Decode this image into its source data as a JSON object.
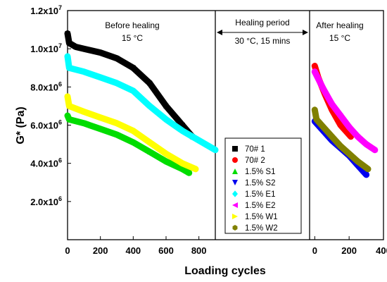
{
  "chart_data": {
    "type": "scatter",
    "xlabel": "Loading cycles",
    "ylabel": "G* (Pa)",
    "y_ticks": [
      {
        "value": 2000000,
        "mant": "2.0x10",
        "exp": "6"
      },
      {
        "value": 4000000,
        "mant": "4.0x10",
        "exp": "6"
      },
      {
        "value": 6000000,
        "mant": "6.0x10",
        "exp": "6"
      },
      {
        "value": 8000000,
        "mant": "8.0x10",
        "exp": "6"
      },
      {
        "value": 10000000,
        "mant": "1.0x10",
        "exp": "7"
      },
      {
        "value": 12000000,
        "mant": "1.2x10",
        "exp": "7"
      }
    ],
    "ylim": [
      0,
      12000000
    ],
    "grid": false,
    "legend": "center-bottom",
    "panels": [
      {
        "name": "before",
        "label_lines": [
          "Before healing",
          "15 °C"
        ],
        "xlim": [
          0,
          900
        ],
        "x_ticks": [
          "0",
          "200",
          "400",
          "600",
          "800"
        ],
        "x_tick_values": [
          0,
          200,
          400,
          600,
          800
        ]
      },
      {
        "name": "healing",
        "label_lines": [
          "Healing period",
          "30 °C, 15 mins"
        ],
        "has_arrow": true
      },
      {
        "name": "after",
        "label_lines": [
          "After healing",
          "15 °C"
        ],
        "xlim": [
          -30,
          400
        ],
        "x_ticks": [
          "0",
          "200",
          "400"
        ],
        "x_tick_values": [
          0,
          200,
          400
        ]
      }
    ],
    "series": [
      {
        "name": "70# 1",
        "color": "#000000",
        "marker": "square",
        "before": [
          [
            0,
            10800000
          ],
          [
            10,
            10300000
          ],
          [
            50,
            10100000
          ],
          [
            100,
            10000000
          ],
          [
            200,
            9800000
          ],
          [
            300,
            9500000
          ],
          [
            400,
            9000000
          ],
          [
            500,
            8200000
          ],
          [
            600,
            7000000
          ],
          [
            700,
            6000000
          ],
          [
            760,
            5400000
          ]
        ],
        "after": []
      },
      {
        "name": "70# 2",
        "color": "#ff0000",
        "marker": "circle",
        "before": [],
        "after": [
          [
            0,
            9100000
          ],
          [
            20,
            8500000
          ],
          [
            60,
            7600000
          ],
          [
            100,
            6800000
          ],
          [
            150,
            6000000
          ],
          [
            210,
            5400000
          ]
        ]
      },
      {
        "name": "1.5% S1",
        "color": "#00dd00",
        "marker": "triangle-up",
        "before": [
          [
            0,
            6500000
          ],
          [
            10,
            6300000
          ],
          [
            100,
            6100000
          ],
          [
            200,
            5800000
          ],
          [
            300,
            5500000
          ],
          [
            400,
            5100000
          ],
          [
            500,
            4600000
          ],
          [
            600,
            4100000
          ],
          [
            700,
            3700000
          ],
          [
            740,
            3500000
          ]
        ],
        "after": []
      },
      {
        "name": "1.5% S2",
        "color": "#0000ee",
        "marker": "triangle-down",
        "before": [],
        "after": [
          [
            0,
            6200000
          ],
          [
            50,
            5700000
          ],
          [
            100,
            5200000
          ],
          [
            150,
            4800000
          ],
          [
            200,
            4400000
          ],
          [
            250,
            3900000
          ],
          [
            300,
            3400000
          ]
        ]
      },
      {
        "name": "1.5% E1",
        "color": "#00ffff",
        "marker": "diamond",
        "before": [
          [
            0,
            9600000
          ],
          [
            10,
            9000000
          ],
          [
            100,
            8800000
          ],
          [
            200,
            8500000
          ],
          [
            300,
            8200000
          ],
          [
            400,
            7800000
          ],
          [
            500,
            7000000
          ],
          [
            600,
            6300000
          ],
          [
            700,
            5700000
          ],
          [
            800,
            5200000
          ],
          [
            900,
            4700000
          ]
        ],
        "after": []
      },
      {
        "name": "1.5% E2",
        "color": "#ff00ff",
        "marker": "triangle-left",
        "before": [],
        "after": [
          [
            0,
            8800000
          ],
          [
            50,
            7900000
          ],
          [
            100,
            7100000
          ],
          [
            150,
            6500000
          ],
          [
            200,
            5900000
          ],
          [
            250,
            5400000
          ],
          [
            300,
            5000000
          ],
          [
            350,
            4700000
          ]
        ]
      },
      {
        "name": "1.5% W1",
        "color": "#ffff00",
        "marker": "triangle-right",
        "before": [
          [
            0,
            7500000
          ],
          [
            10,
            7000000
          ],
          [
            100,
            6700000
          ],
          [
            200,
            6400000
          ],
          [
            300,
            6100000
          ],
          [
            400,
            5700000
          ],
          [
            500,
            5100000
          ],
          [
            600,
            4500000
          ],
          [
            700,
            4000000
          ],
          [
            780,
            3700000
          ]
        ],
        "after": []
      },
      {
        "name": "1.5% W2",
        "color": "#808000",
        "marker": "hexagon",
        "before": [],
        "after": [
          [
            0,
            6800000
          ],
          [
            10,
            6300000
          ],
          [
            50,
            5900000
          ],
          [
            100,
            5400000
          ],
          [
            150,
            4900000
          ],
          [
            200,
            4500000
          ],
          [
            250,
            4100000
          ],
          [
            310,
            3700000
          ]
        ]
      }
    ]
  }
}
